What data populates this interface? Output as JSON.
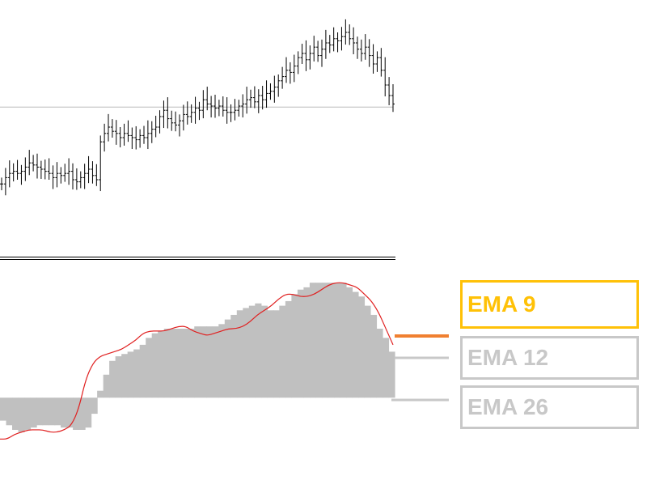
{
  "legend": {
    "ema9": "EMA 9",
    "ema12": "EMA 12",
    "ema26": "EMA 26"
  },
  "colors": {
    "ema9": "#ffc107",
    "ema12": "#c8c8c8",
    "ema26": "#c8c8c8",
    "ema9_marker": "#f08030",
    "bars": "#000000",
    "histogram": "#c0c0c0",
    "signal": "#e02020",
    "price_level_line": "#bbbbbb"
  },
  "chart_data": [
    {
      "type": "ohlc",
      "grid": false,
      "ylim": [
        0,
        100
      ],
      "horizontal_line": 64.5,
      "close": [
        28,
        31,
        33,
        34,
        33,
        34,
        36,
        38,
        37,
        36,
        35,
        34,
        33,
        31,
        33,
        32,
        33,
        34,
        30,
        29,
        31,
        33,
        35,
        32,
        30,
        48,
        52,
        55,
        53,
        52,
        50,
        52,
        51,
        50,
        49,
        51,
        50,
        52,
        54,
        55,
        60,
        63,
        59,
        57,
        56,
        58,
        61,
        60,
        62,
        64,
        63,
        68,
        66,
        65,
        64,
        65,
        63,
        62,
        62,
        63,
        65,
        66,
        68,
        69,
        67,
        70,
        68,
        71,
        72,
        74,
        77,
        79,
        82,
        81,
        84,
        88,
        90,
        87,
        90,
        93,
        89,
        92,
        95,
        94,
        97,
        96,
        98,
        100,
        97,
        95,
        92,
        90,
        93,
        89,
        85,
        88,
        82,
        75,
        70,
        66
      ]
    },
    {
      "type": "histogram+line",
      "grid": false,
      "ylim": [
        -20,
        55
      ],
      "baseline": 0,
      "histogram": [
        -10,
        -12,
        -14,
        -15,
        -14,
        -13,
        -12,
        -12,
        -12,
        -12,
        -13,
        -13,
        -14,
        -14,
        -13,
        -7,
        3,
        10,
        16,
        18,
        19,
        20,
        21,
        23,
        26,
        28,
        29,
        30,
        30,
        30,
        30,
        30,
        31,
        31,
        31,
        31,
        32,
        34,
        36,
        38,
        39,
        40,
        41,
        40,
        38,
        38,
        40,
        42,
        45,
        47,
        48,
        50,
        50,
        50,
        50,
        50,
        50,
        48,
        46,
        44,
        40,
        36,
        30,
        26,
        20
      ],
      "signal": [
        -18,
        -18,
        -16,
        -15,
        -14,
        -14,
        -14,
        -15,
        -15,
        -14,
        -12,
        -5,
        8,
        15,
        18,
        19,
        20,
        21,
        23,
        25,
        28,
        29,
        29,
        29,
        30,
        31,
        31,
        29,
        28,
        27,
        28,
        29,
        30,
        30,
        31,
        33,
        36,
        38,
        40,
        43,
        45,
        45,
        44,
        44,
        45,
        47,
        49,
        50,
        50,
        49,
        48,
        45,
        42,
        37,
        30,
        23
      ]
    }
  ]
}
